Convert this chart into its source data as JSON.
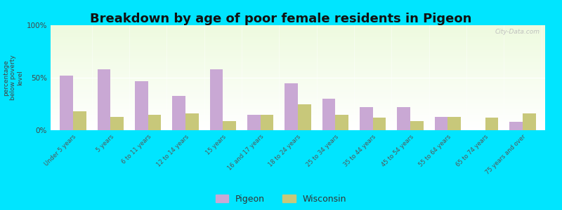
{
  "title": "Breakdown by age of poor female residents in Pigeon",
  "ylabel": "percentage\nbelow poverty\nlevel",
  "categories": [
    "Under 5 years",
    "5 years",
    "6 to 11 years",
    "12 to 14 years",
    "15 years",
    "16 and 17 years",
    "18 to 24 years",
    "25 to 34 years",
    "35 to 44 years",
    "45 to 54 years",
    "55 to 64 years",
    "65 to 74 years",
    "75 years and over"
  ],
  "pigeon_values": [
    52,
    58,
    47,
    33,
    58,
    15,
    45,
    30,
    22,
    22,
    13,
    0,
    8
  ],
  "wisconsin_values": [
    18,
    13,
    15,
    16,
    9,
    15,
    25,
    15,
    12,
    9,
    13,
    12,
    16
  ],
  "pigeon_color": "#c9a8d4",
  "wisconsin_color": "#c8c87a",
  "bg_color_top": "#f0fbe8",
  "bg_color_bottom": "#fafff6",
  "outer_bg": "#00e5ff",
  "yticks": [
    0,
    50,
    100
  ],
  "ytick_labels": [
    "0%",
    "50%",
    "100%"
  ],
  "ylim": [
    0,
    100
  ],
  "title_fontsize": 13,
  "bar_width": 0.35,
  "legend_pigeon": "Pigeon",
  "legend_wisconsin": "Wisconsin",
  "watermark": "City-Data.com"
}
